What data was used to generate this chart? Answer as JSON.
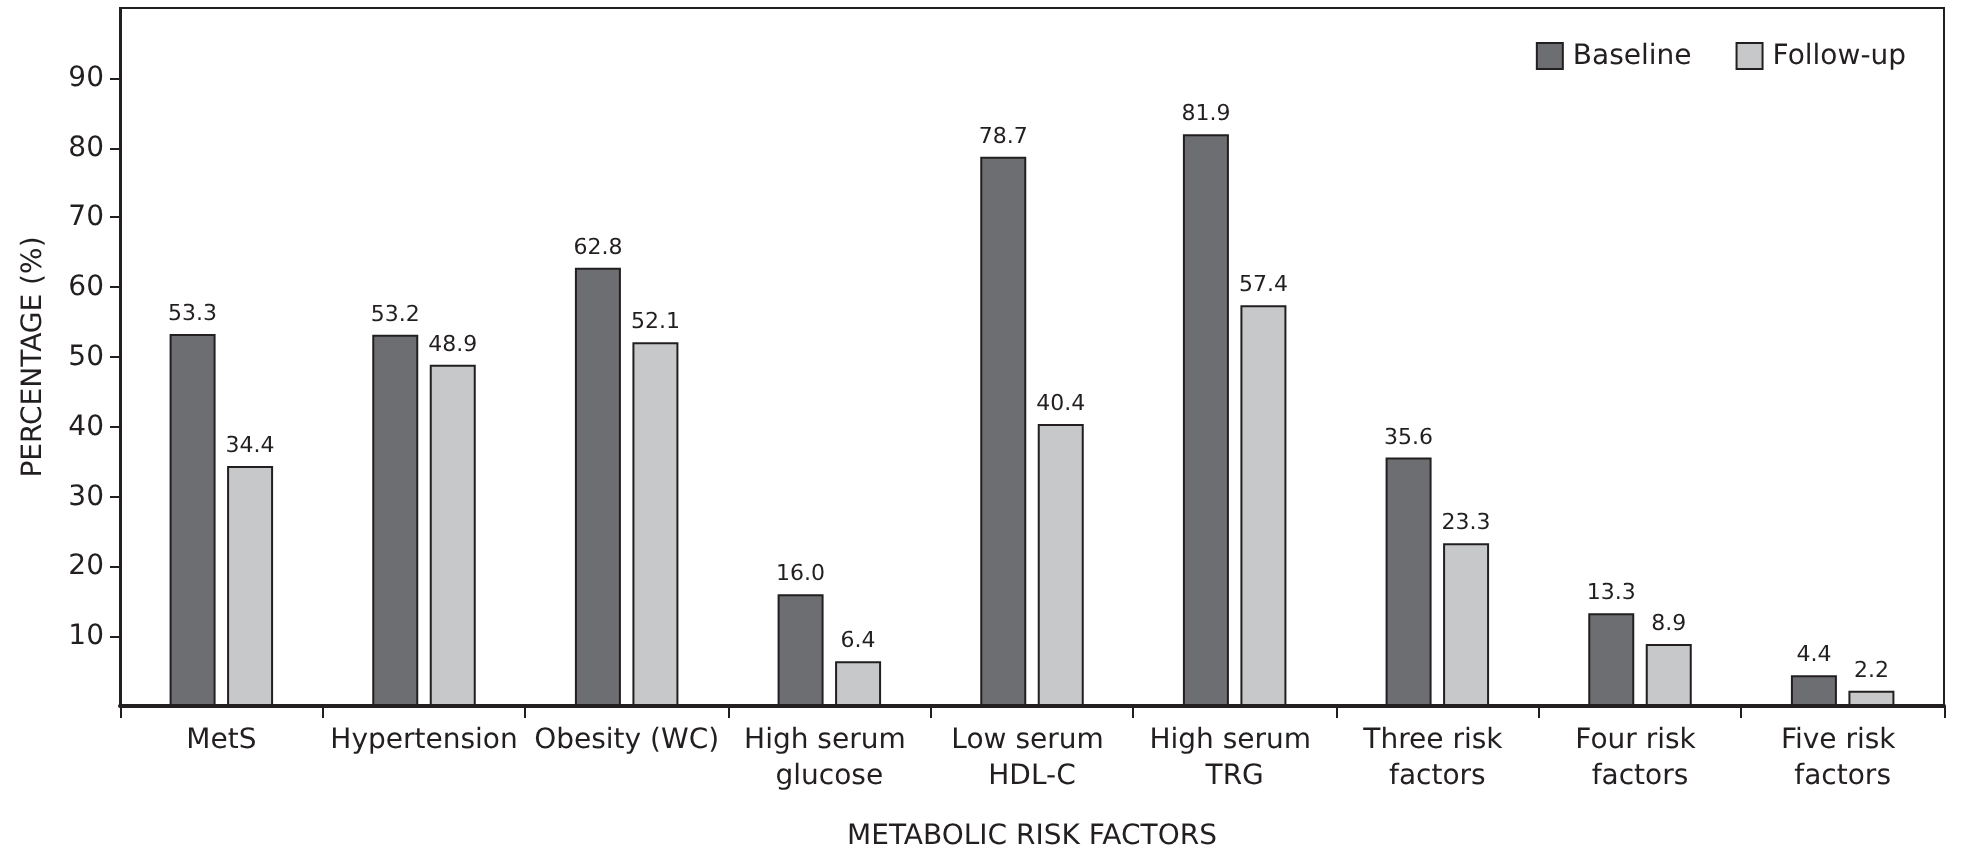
{
  "chart_data": {
    "type": "bar",
    "xlabel": "METABOLIC RISK FACTORS",
    "ylabel": "PERCENTAGE (%)",
    "categories": [
      "MetS",
      "Hypertension",
      "Obesity (WC)",
      "High serum glucose",
      "Low serum HDL-C",
      "High serum TRG",
      "Three risk factors",
      "Four risk factors",
      "Five risk factors"
    ],
    "series": [
      {
        "name": "Baseline",
        "color": "#6d6e71",
        "values": [
          53.3,
          53.2,
          62.8,
          16.0,
          78.7,
          81.9,
          35.6,
          13.3,
          4.4
        ],
        "value_labels": [
          "53.3",
          "53.2",
          "62.8",
          "16.0",
          "78.7",
          "81.9",
          "35.6",
          "13.3",
          "4.4"
        ]
      },
      {
        "name": "Follow-up",
        "color": "#c7c8ca",
        "values": [
          34.4,
          48.9,
          52.1,
          6.4,
          40.4,
          57.4,
          23.3,
          8.9,
          2.2
        ],
        "value_labels": [
          "34.4",
          "48.9",
          "52.1",
          "6.4",
          "40.4",
          "57.4",
          "23.3",
          "8.9",
          "2.2"
        ]
      }
    ],
    "ylim": [
      0,
      100
    ],
    "yticks": [
      10,
      20,
      30,
      40,
      50,
      60,
      70,
      80,
      90
    ],
    "grid": false,
    "legend": "top right"
  }
}
